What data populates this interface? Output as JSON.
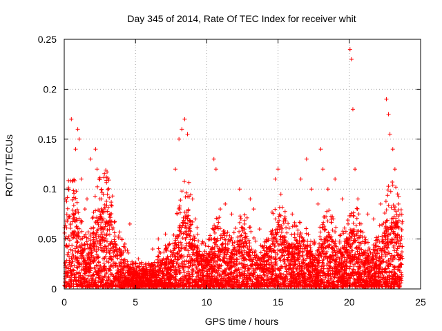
{
  "chart_data": {
    "type": "scatter",
    "title": "Day 345 of 2014, Rate Of TEC Index for receiver whit",
    "xlabel": "GPS time / hours",
    "ylabel": "ROTI / TECUs",
    "xlim": [
      0,
      25
    ],
    "ylim": [
      0,
      0.25
    ],
    "xticks": [
      0,
      5,
      10,
      15,
      20,
      25
    ],
    "xtick_labels": [
      "0",
      "5",
      "10",
      "15",
      "20",
      "25"
    ],
    "yticks": [
      0,
      0.05,
      0.1,
      0.15,
      0.2,
      0.25
    ],
    "ytick_labels": [
      "0",
      "0.05",
      "0.1",
      "0.15",
      "0.2",
      "0.25"
    ],
    "grid": true,
    "marker": "+",
    "color": "#ff0000",
    "series": [
      {
        "name": "ROTI",
        "x": [
          0.1,
          0.3,
          0.5,
          0.8,
          0.95,
          1.05,
          1.2,
          1.45,
          1.6,
          1.85,
          2.2,
          2.3,
          2.45,
          2.6,
          2.8,
          3.1,
          3.25,
          3.4,
          3.6,
          4.0,
          4.6,
          5.2,
          6.2,
          6.6,
          7.1,
          7.8,
          8.05,
          8.25,
          8.45,
          8.65,
          9.0,
          9.2,
          10.5,
          10.65,
          10.95,
          11.3,
          11.75,
          12.3,
          12.65,
          13.05,
          13.3,
          13.7,
          14.8,
          15.0,
          15.2,
          15.5,
          16.0,
          16.6,
          17.0,
          17.35,
          17.8,
          18.0,
          18.15,
          18.5,
          19.0,
          19.5,
          20.05,
          20.15,
          20.25,
          20.4,
          20.6,
          21.3,
          21.7,
          22.2,
          22.6,
          22.75,
          22.85,
          23.05,
          23.2,
          23.45
        ],
        "y": [
          0.09,
          0.1,
          0.17,
          0.14,
          0.16,
          0.15,
          0.11,
          0.08,
          0.09,
          0.13,
          0.14,
          0.12,
          0.11,
          0.09,
          0.08,
          0.065,
          0.075,
          0.06,
          0.045,
          0.035,
          0.065,
          0.03,
          0.04,
          0.05,
          0.055,
          0.12,
          0.15,
          0.16,
          0.17,
          0.155,
          0.09,
          0.07,
          0.13,
          0.12,
          0.08,
          0.085,
          0.075,
          0.1,
          0.065,
          0.09,
          0.08,
          0.06,
          0.11,
          0.12,
          0.095,
          0.07,
          0.075,
          0.11,
          0.13,
          0.1,
          0.085,
          0.14,
          0.12,
          0.1,
          0.11,
          0.09,
          0.24,
          0.23,
          0.18,
          0.12,
          0.09,
          0.075,
          0.07,
          0.085,
          0.19,
          0.175,
          0.155,
          0.14,
          0.12,
          0.085
        ]
      }
    ],
    "density_note": "Dense low-level band of ROTI values from 0 to about 0.05 TECU across 0-23.7 h"
  }
}
